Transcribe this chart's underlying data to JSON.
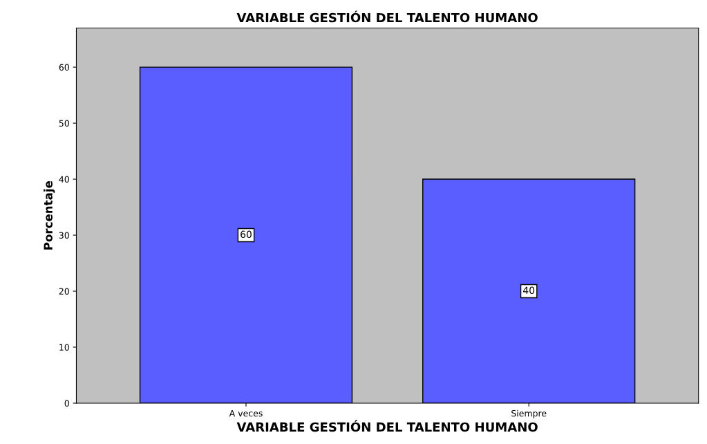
{
  "chart_data": {
    "type": "bar",
    "title": "VARIABLE GESTIÓN DEL TALENTO HUMANO",
    "xlabel": "VARIABLE GESTIÓN DEL TALENTO HUMANO",
    "ylabel": "Porcentaje",
    "categories": [
      "A veces",
      "Siempre"
    ],
    "values": [
      60,
      40
    ],
    "color": "#5a5eff",
    "ylim": [
      0,
      67
    ],
    "yticks": [
      0,
      10,
      20,
      30,
      40,
      50,
      60
    ],
    "grid": false,
    "data_labels": true
  }
}
